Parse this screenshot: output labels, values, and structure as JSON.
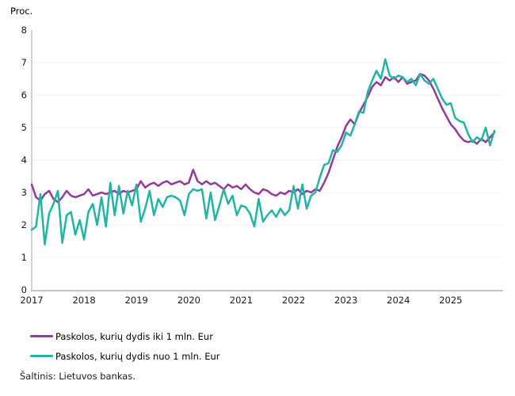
{
  "page": {
    "background": "#ffffff"
  },
  "chart": {
    "unit_label": "Proc.",
    "source": "Šaltinis: Lietuvos bankas.",
    "legend": [
      {
        "label": "Paskolos, kurių dydis iki 1 mln. Eur",
        "color": "#913a9b"
      },
      {
        "label": "Paskolos, kurių dydis nuo 1 mln. Eur",
        "color": "#1fb5a2"
      }
    ],
    "colors": {
      "axis": "#c4c4c4",
      "gridline": "#f2f2f2",
      "text": "#1a1a1a"
    }
  },
  "chart_data": {
    "type": "line",
    "title": "",
    "xlabel": "",
    "ylabel": "Proc.",
    "ylim": [
      0,
      8
    ],
    "yticks": [
      0,
      1,
      2,
      3,
      4,
      5,
      6,
      7,
      8
    ],
    "xticks": [
      "2017",
      "2018",
      "2019",
      "2020",
      "2021",
      "2022",
      "2023",
      "2024",
      "2025"
    ],
    "x_start": "2017-01",
    "x_end": "2025-11",
    "frequency": "monthly",
    "grid": "horizontal-faint",
    "legend_position": "bottom-left",
    "series": [
      {
        "name": "Paskolos, kurių dydis iki 1 mln. Eur",
        "color": "#913a9b",
        "values": [
          3.25,
          2.85,
          2.75,
          2.95,
          3.05,
          2.8,
          2.7,
          2.85,
          3.05,
          2.9,
          2.85,
          2.9,
          2.95,
          3.1,
          2.9,
          2.95,
          3.0,
          2.95,
          3.0,
          3.05,
          2.95,
          3.05,
          3.0,
          3.05,
          3.1,
          3.35,
          3.15,
          3.25,
          3.3,
          3.2,
          3.3,
          3.35,
          3.25,
          3.3,
          3.35,
          3.25,
          3.3,
          3.7,
          3.35,
          3.25,
          3.35,
          3.25,
          3.3,
          3.2,
          3.1,
          3.25,
          3.15,
          3.2,
          3.1,
          3.25,
          3.1,
          3.0,
          2.95,
          3.1,
          3.05,
          2.95,
          2.9,
          3.0,
          2.95,
          3.05,
          3.0,
          3.1,
          2.95,
          3.05,
          3.0,
          3.1,
          3.05,
          3.3,
          3.6,
          4.0,
          4.4,
          4.7,
          5.05,
          5.25,
          5.1,
          5.45,
          5.7,
          5.95,
          6.25,
          6.4,
          6.3,
          6.55,
          6.45,
          6.55,
          6.4,
          6.55,
          6.35,
          6.4,
          6.45,
          6.65,
          6.6,
          6.45,
          6.2,
          5.9,
          5.6,
          5.35,
          5.1,
          4.95,
          4.75,
          4.6,
          4.55,
          4.6,
          4.5,
          4.65,
          4.55,
          4.7,
          4.85
        ]
      },
      {
        "name": "Paskolos, kurių dydis nuo 1 mln. Eur",
        "color": "#1fb5a2",
        "values": [
          1.85,
          1.95,
          2.95,
          1.4,
          2.35,
          2.65,
          3.05,
          1.45,
          2.3,
          2.4,
          1.7,
          2.15,
          1.55,
          2.4,
          2.65,
          2.0,
          2.85,
          1.95,
          3.3,
          2.3,
          3.2,
          2.35,
          3.05,
          2.6,
          3.25,
          2.1,
          2.5,
          3.05,
          2.3,
          2.8,
          2.55,
          2.85,
          2.9,
          2.85,
          2.75,
          2.3,
          2.95,
          3.1,
          3.05,
          3.1,
          2.2,
          3.0,
          2.15,
          2.6,
          3.1,
          2.65,
          2.9,
          2.3,
          2.6,
          2.55,
          2.35,
          1.95,
          2.8,
          2.1,
          2.3,
          2.45,
          2.25,
          2.5,
          2.3,
          2.45,
          3.2,
          2.5,
          3.25,
          2.5,
          2.9,
          3.0,
          3.45,
          3.85,
          3.9,
          4.3,
          4.25,
          4.45,
          4.85,
          4.75,
          5.1,
          5.5,
          5.45,
          6.1,
          6.45,
          6.75,
          6.5,
          7.1,
          6.6,
          6.5,
          6.6,
          6.55,
          6.4,
          6.5,
          6.3,
          6.65,
          6.45,
          6.35,
          6.5,
          6.2,
          5.9,
          5.7,
          5.75,
          5.3,
          5.2,
          5.15,
          4.8,
          4.55,
          4.7,
          4.6,
          5.0,
          4.45,
          4.9
        ]
      }
    ]
  }
}
